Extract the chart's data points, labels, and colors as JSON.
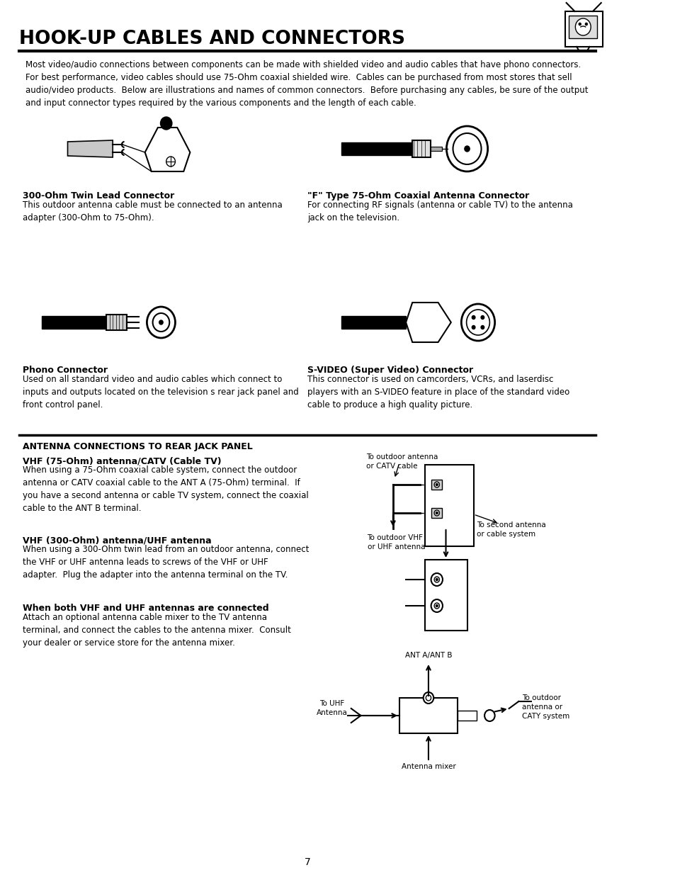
{
  "title": "HOOK-UP CABLES AND CONNECTORS",
  "bg_color": "#ffffff",
  "text_color": "#000000",
  "page_number": "7",
  "intro_text": "Most video/audio connections between components can be made with shielded video and audio cables that have phono connectors.\nFor best performance, video cables should use 75-Ohm coaxial shielded wire.  Cables can be purchased from most stores that sell\naudio/video products.  Below are illustrations and names of common connectors.  Before purchasing any cables, be sure of the output\nand input connector types required by the various components and the length of each cable.",
  "connector1_title": "300-Ohm Twin Lead Connector",
  "connector1_desc": "This outdoor antenna cable must be connected to an antenna\nadapter (300-Ohm to 75-Ohm).",
  "connector2_title": "\"F\" Type 75-Ohm Coaxial Antenna Connector",
  "connector2_desc": "For connecting RF signals (antenna or cable TV) to the antenna\njack on the television.",
  "connector3_title": "Phono Connector",
  "connector3_desc": "Used on all standard video and audio cables which connect to\ninputs and outputs located on the television s rear jack panel and\nfront control panel.",
  "connector4_title": "S-VIDEO (Super Video) Connector",
  "connector4_desc": "This connector is used on camcorders, VCRs, and laserdisc\nplayers with an S-VIDEO feature in place of the standard video\ncable to produce a high quality picture.",
  "section2_title": "ANTENNA CONNECTIONS TO REAR JACK PANEL",
  "vhf_title": "VHF (75-Ohm) antenna/CATV (Cable TV)",
  "vhf_desc": "When using a 75-Ohm coaxial cable system, connect the outdoor\nantenna or CATV coaxial cable to the ANT A (75-Ohm) terminal.  If\nyou have a second antenna or cable TV system, connect the coaxial\ncable to the ANT B terminal.",
  "uhf_title": "VHF (300-Ohm) antenna/UHF antenna",
  "uhf_desc": "When using a 300-Ohm twin lead from an outdoor antenna, connect\nthe VHF or UHF antenna leads to screws of the VHF or UHF\nadapter.  Plug the adapter into the antenna terminal on the TV.",
  "both_title": "When both VHF and UHF antennas are connected",
  "both_desc": "Attach an optional antenna cable mixer to the TV antenna\nterminal, and connect the cables to the antenna mixer.  Consult\nyour dealer or service store for the antenna mixer.",
  "label_outdoor": "To outdoor antenna\nor CATV cable",
  "label_second": "To second antenna\nor cable system",
  "label_outdoor_vhf": "To outdoor VHF\nor UHF antenna",
  "label_uhf_ant": "To UHF\nAntenna",
  "label_ant_ab": "ANT A/ANT B",
  "label_outdoor_catv": "To outdoor\nantenna or\nCATY system",
  "label_mixer": "Antenna mixer"
}
